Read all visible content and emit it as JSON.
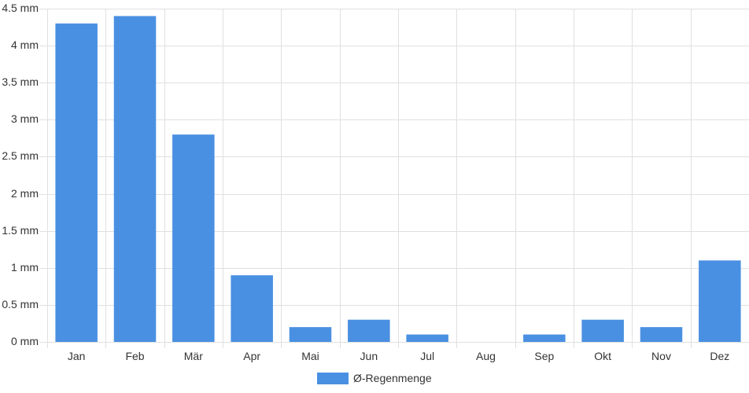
{
  "chart_data": {
    "type": "bar",
    "categories": [
      "Jan",
      "Feb",
      "Mär",
      "Apr",
      "Mai",
      "Jun",
      "Jul",
      "Aug",
      "Sep",
      "Okt",
      "Nov",
      "Dez"
    ],
    "series": [
      {
        "name": "Ø-Regenmenge",
        "values": [
          4.3,
          4.4,
          2.8,
          0.9,
          0.2,
          0.3,
          0.1,
          0,
          0.1,
          0.3,
          0.2,
          1.1
        ]
      }
    ],
    "y_ticks": [
      "0 mm",
      "0.5 mm",
      "1 mm",
      "1.5 mm",
      "2 mm",
      "2.5 mm",
      "3 mm",
      "3.5 mm",
      "4 mm",
      "4.5 mm"
    ],
    "ylim": [
      0,
      4.5
    ],
    "y_unit": "mm",
    "grid": true,
    "legend_position": "bottom-center",
    "colors": {
      "bar": "#4a90e2",
      "grid": "#e0e0e0"
    }
  },
  "legend": {
    "label": "Ø-Regenmenge"
  }
}
